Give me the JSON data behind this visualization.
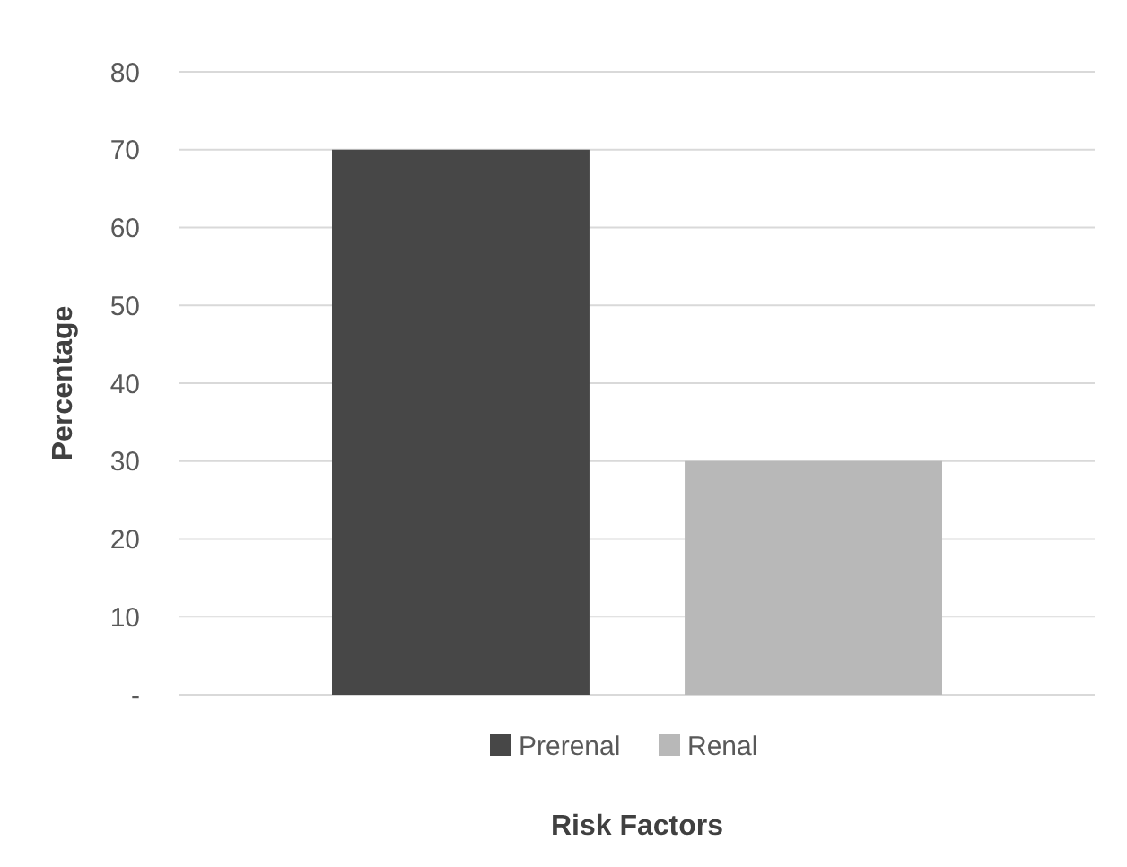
{
  "chart_data": {
    "type": "bar",
    "xlabel": "Risk Factors",
    "ylabel": "Percentage",
    "categories": [
      null
    ],
    "series": [
      {
        "name": "Prerenal",
        "color": "#474747",
        "values": [
          70
        ]
      },
      {
        "name": "Renal",
        "color": "#b8b8b8",
        "values": [
          30
        ]
      }
    ],
    "ylim": [
      0,
      80
    ],
    "yticks": [
      {
        "value": 0,
        "label": "-"
      },
      10,
      20,
      30,
      40,
      50,
      60,
      70,
      80
    ],
    "grid": "y",
    "legend": "bottom"
  }
}
